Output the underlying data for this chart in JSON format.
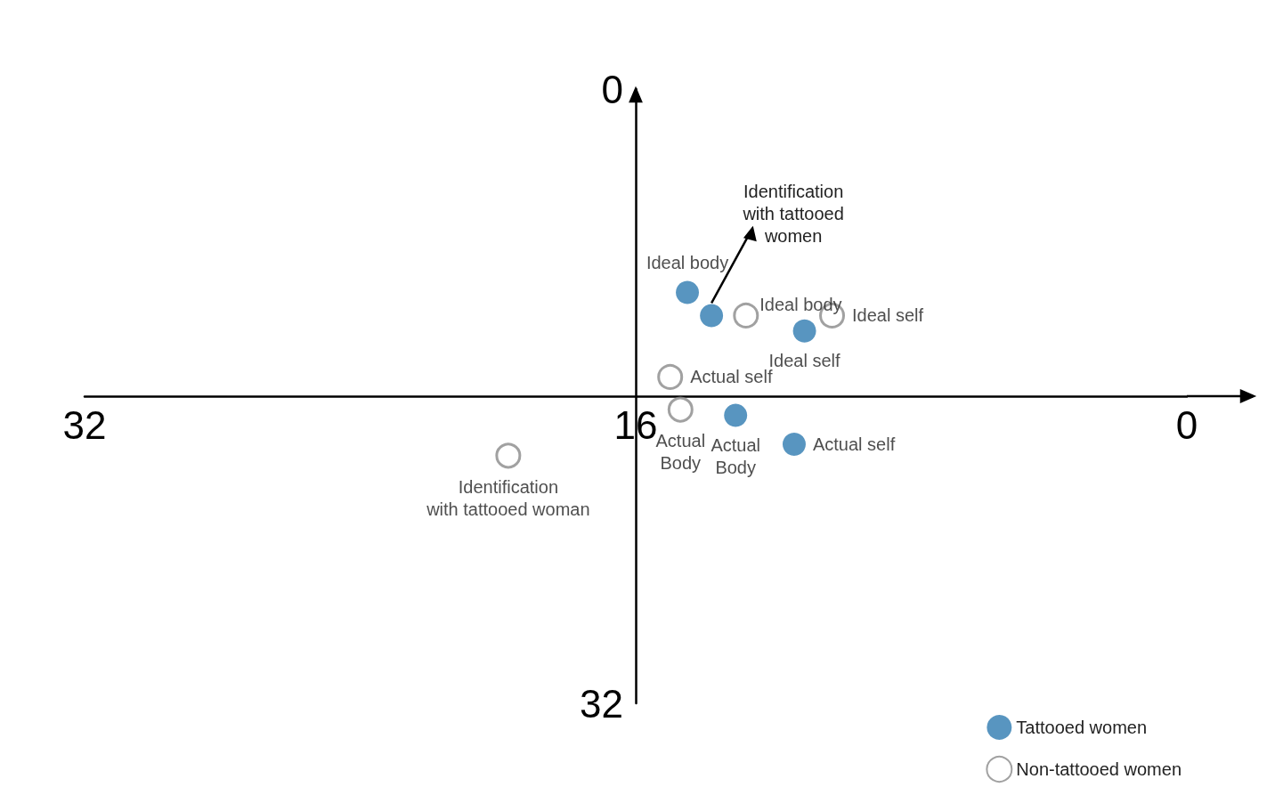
{
  "chart_data": {
    "type": "scatter",
    "xlim": [
      32,
      0
    ],
    "ylim": [
      32,
      0
    ],
    "xticks": [
      32,
      16,
      0
    ],
    "yticks": [
      0,
      32
    ],
    "marker": "circle",
    "legend": "bottom right",
    "grid": false,
    "series": [
      {
        "name": "Tattooed women",
        "color": "#2e7bb0",
        "x": [
          14.5,
          13.8,
          11.1,
          13.1,
          11.4
        ],
        "values": [
          10.6,
          11.8,
          12.6,
          17.0,
          18.5
        ],
        "value_labels": [
          "Ideal body",
          null,
          "Ideal self",
          "Actual\nBody",
          "Actual self"
        ]
      },
      {
        "name": "Non-tattooed women",
        "color": "#8a8a8a",
        "x": [
          12.8,
          10.3,
          15.0,
          14.7,
          19.7
        ],
        "values": [
          11.8,
          11.8,
          15.0,
          16.7,
          19.1
        ],
        "value_labels": [
          "Ideal body",
          "Ideal self",
          "Actual self",
          "Actual\nBody",
          "Identification\nwith tattooed woman"
        ]
      }
    ],
    "annotations": [
      "Identification\nwith tattooed\nwomen"
    ]
  }
}
